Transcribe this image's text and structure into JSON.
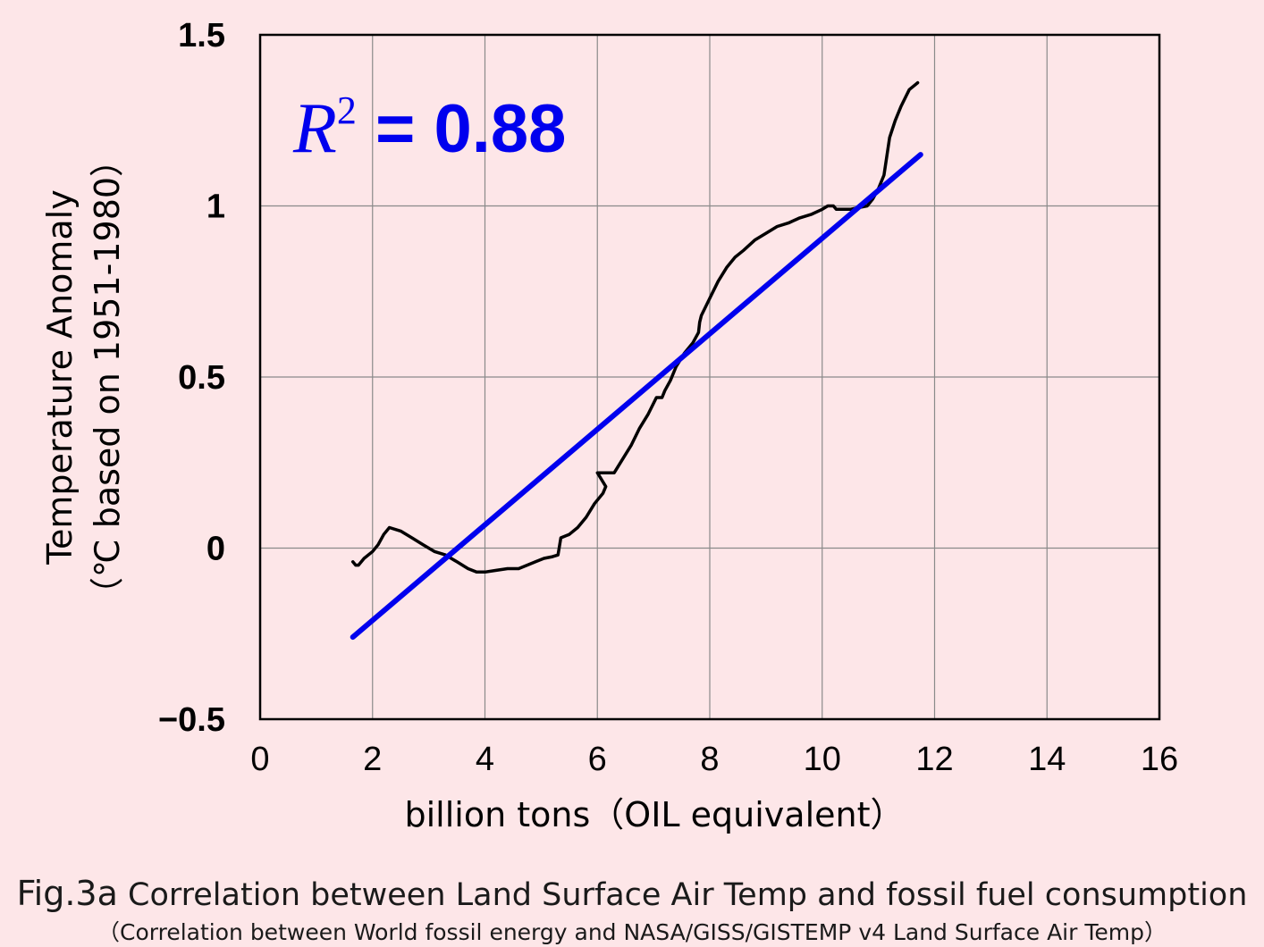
{
  "chart_data": {
    "type": "line",
    "xlabel": "billion tons（OIL equivalent）",
    "ylabel_line1": "Temperature Anomaly",
    "ylabel_line2": "（℃ based on 1951-1980）",
    "xlim": [
      0,
      16
    ],
    "ylim": [
      -0.5,
      1.5
    ],
    "x_ticks": [
      0,
      2,
      4,
      6,
      8,
      10,
      12,
      14,
      16
    ],
    "x_tick_labels": [
      "0",
      "2",
      "4",
      "6",
      "8",
      "10",
      "12",
      "14",
      "16"
    ],
    "y_ticks": [
      -0.5,
      0,
      0.5,
      1,
      1.5
    ],
    "y_tick_labels": [
      "−0.5",
      "0",
      "0.5",
      "1",
      "1.5"
    ],
    "grid": true,
    "annotation": {
      "r_label": "R",
      "r_exp": "2",
      "r_value": " = 0.88"
    },
    "series": [
      {
        "color": "#000000",
        "x": [
          1.65,
          1.7,
          1.75,
          1.85,
          2.0,
          2.1,
          2.2,
          2.3,
          2.5,
          2.7,
          2.9,
          3.1,
          3.3,
          3.5,
          3.7,
          3.85,
          4.0,
          4.2,
          4.4,
          4.6,
          4.75,
          4.9,
          5.05,
          5.2,
          5.3,
          5.32,
          5.35,
          5.5,
          5.65,
          5.8,
          5.95,
          6.1,
          6.15,
          6.0,
          6.2,
          6.3,
          6.45,
          6.6,
          6.75,
          6.9,
          7.05,
          7.15,
          7.2,
          7.3,
          7.4,
          7.55,
          7.7,
          7.8,
          7.82,
          7.85,
          8.0,
          8.15,
          8.3,
          8.45,
          8.6,
          8.8,
          9.0,
          9.2,
          9.4,
          9.6,
          9.8,
          10.0,
          10.1,
          10.2,
          10.25,
          10.3,
          10.5,
          10.65,
          10.8,
          10.9,
          11.0,
          11.1,
          11.2,
          11.3,
          11.4,
          11.55,
          11.7
        ],
        "y": [
          -0.04,
          -0.05,
          -0.05,
          -0.03,
          -0.01,
          0.01,
          0.04,
          0.06,
          0.05,
          0.03,
          0.01,
          -0.01,
          -0.02,
          -0.04,
          -0.06,
          -0.07,
          -0.07,
          -0.065,
          -0.06,
          -0.06,
          -0.05,
          -0.04,
          -0.03,
          -0.025,
          -0.02,
          0.0,
          0.03,
          0.04,
          0.06,
          0.09,
          0.13,
          0.16,
          0.18,
          0.22,
          0.22,
          0.22,
          0.26,
          0.3,
          0.35,
          0.39,
          0.44,
          0.44,
          0.46,
          0.49,
          0.53,
          0.57,
          0.6,
          0.63,
          0.66,
          0.68,
          0.73,
          0.78,
          0.82,
          0.85,
          0.87,
          0.9,
          0.92,
          0.94,
          0.95,
          0.965,
          0.975,
          0.99,
          1.0,
          1.0,
          0.99,
          0.99,
          0.99,
          0.995,
          1.0,
          1.02,
          1.05,
          1.09,
          1.2,
          1.25,
          1.29,
          1.34,
          1.36
        ]
      },
      {
        "color": "#0000ee",
        "x": [
          1.65,
          11.75
        ],
        "y": [
          -0.26,
          1.15
        ]
      }
    ]
  },
  "caption": {
    "fig_num": "Fig.3a",
    "title": " Correlation between Land Surface Air Temp and fossil fuel consumption",
    "subtitle": "（Correlation between World fossil energy and NASA/GISS/GISTEMP v4 Land Surface Air Temp）"
  }
}
